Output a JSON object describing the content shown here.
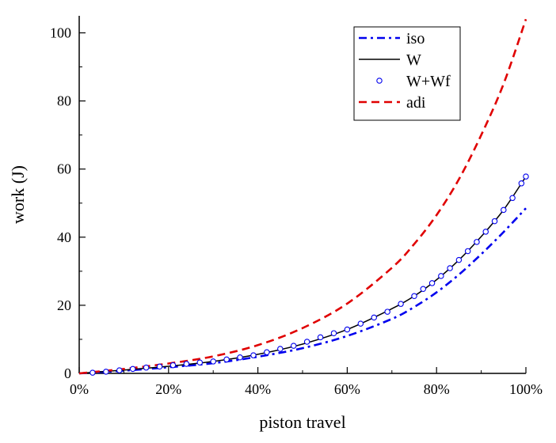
{
  "chart_data": {
    "type": "line",
    "title": "",
    "xlabel": "piston travel",
    "ylabel": "work (J)",
    "xlim": [
      0,
      100
    ],
    "ylim": [
      0,
      105
    ],
    "x_ticks": [
      0,
      20,
      40,
      60,
      80,
      100
    ],
    "x_tick_labels": [
      "0%",
      "20%",
      "40%",
      "60%",
      "80%",
      "100%"
    ],
    "y_ticks": [
      0,
      20,
      40,
      60,
      80,
      100
    ],
    "y_tick_labels": [
      "0",
      "20",
      "40",
      "60",
      "80",
      "100"
    ],
    "grid": false,
    "legend_position": "top-right",
    "series": [
      {
        "name": "iso",
        "style": "dash-dot",
        "color": "#0000ee",
        "x": [
          0,
          10,
          20,
          30,
          40,
          50,
          60,
          70,
          75,
          80,
          85,
          90,
          95,
          100
        ],
        "y": [
          0,
          0.8,
          1.8,
          3.0,
          4.9,
          7.4,
          11.0,
          16.0,
          19.5,
          23.8,
          29.0,
          35.0,
          41.5,
          48.5
        ]
      },
      {
        "name": "W",
        "style": "solid",
        "color": "#000000",
        "x": [
          0,
          10,
          20,
          30,
          40,
          50,
          60,
          70,
          75,
          80,
          85,
          90,
          95,
          100
        ],
        "y": [
          0,
          1.0,
          2.1,
          3.5,
          5.6,
          8.6,
          12.9,
          19.0,
          22.7,
          27.5,
          33.3,
          40.2,
          48.0,
          57.8
        ]
      },
      {
        "name": "W+Wf",
        "style": "markers",
        "color": "#0000ee",
        "x": [
          3,
          6,
          9,
          12,
          15,
          18,
          21,
          24,
          27,
          30,
          33,
          36,
          39,
          42,
          45,
          48,
          51,
          54,
          57,
          60,
          63,
          66,
          69,
          72,
          75,
          77,
          79,
          81,
          83,
          85,
          87,
          89,
          91,
          93,
          95,
          97,
          99,
          100
        ],
        "y": [
          0.2,
          0.5,
          0.9,
          1.3,
          1.7,
          2.0,
          2.4,
          2.8,
          3.2,
          3.5,
          4.1,
          4.7,
          5.3,
          6.2,
          7.2,
          8.1,
          9.3,
          10.6,
          11.8,
          12.9,
          14.6,
          16.4,
          18.1,
          20.4,
          22.7,
          24.8,
          26.5,
          28.6,
          30.9,
          33.3,
          35.9,
          38.6,
          41.6,
          44.7,
          48.0,
          51.5,
          55.8,
          57.8
        ]
      },
      {
        "name": "adi",
        "style": "dashed",
        "color": "#e00000",
        "x": [
          0,
          10,
          20,
          30,
          40,
          50,
          60,
          70,
          75,
          80,
          85,
          90,
          95,
          100
        ],
        "y": [
          0,
          1.3,
          2.9,
          5.0,
          8.3,
          13.3,
          20.5,
          31.0,
          38.0,
          46.5,
          57.0,
          70.0,
          85.0,
          104.0
        ]
      }
    ]
  }
}
